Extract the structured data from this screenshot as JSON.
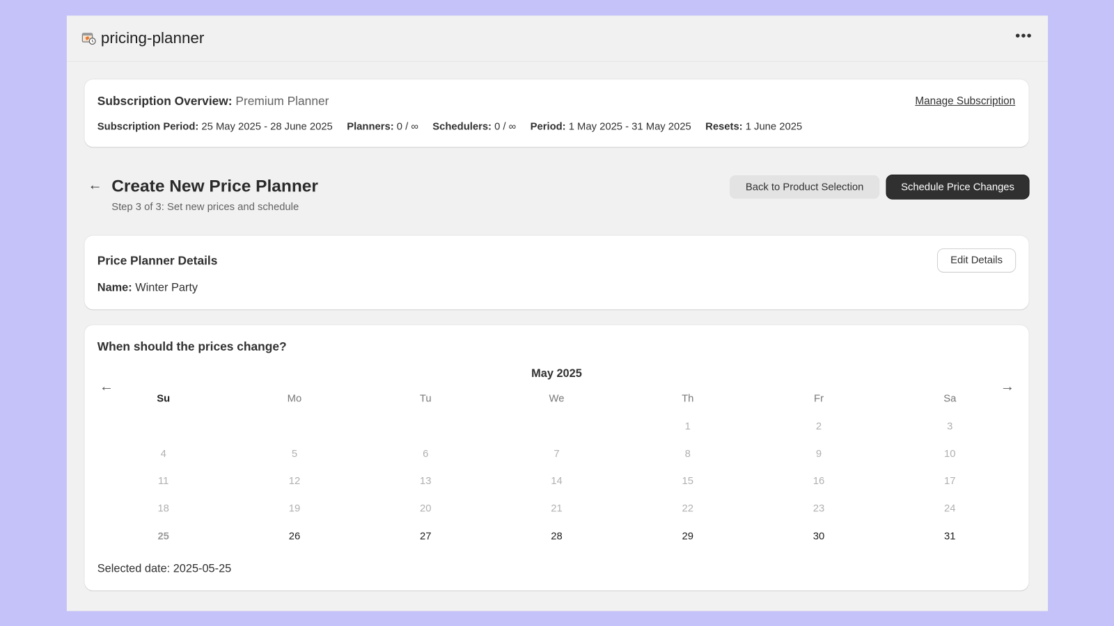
{
  "app": {
    "title": "pricing-planner",
    "icon": "calendar-clock-icon",
    "menu_icon": "more-horizontal-icon"
  },
  "subscription": {
    "label": "Subscription Overview:",
    "plan": "Premium Planner",
    "manage_link": "Manage Subscription",
    "fields": [
      {
        "label": "Subscription Period:",
        "value": "25 May 2025 - 28 June 2025"
      },
      {
        "label": "Planners:",
        "value": "0 / ∞"
      },
      {
        "label": "Schedulers:",
        "value": "0 / ∞"
      },
      {
        "label": "Period:",
        "value": "1 May 2025 - 31 May 2025"
      },
      {
        "label": "Resets:",
        "value": "1 June 2025"
      }
    ]
  },
  "page": {
    "back_icon": "arrow-left-icon",
    "title": "Create New Price Planner",
    "subtitle": "Step 3 of 3: Set new prices and schedule",
    "back_button": "Back to Product Selection",
    "primary_button": "Schedule Price Changes"
  },
  "details": {
    "title": "Price Planner Details",
    "edit_button": "Edit Details",
    "name_label": "Name:",
    "name_value": "Winter Party"
  },
  "calendar": {
    "question": "When should the prices change?",
    "month": "May 2025",
    "weekdays": [
      "Su",
      "Mo",
      "Tu",
      "We",
      "Th",
      "Fr",
      "Sa"
    ],
    "first_weekday_index": 4,
    "days_in_month": 31,
    "first_selectable_day": 26,
    "selected_day": 25,
    "selected_label": "Selected date:",
    "selected_value": "2025-05-25"
  },
  "colors": {
    "background": "#c4c2f8",
    "primary_button": "#303030"
  }
}
